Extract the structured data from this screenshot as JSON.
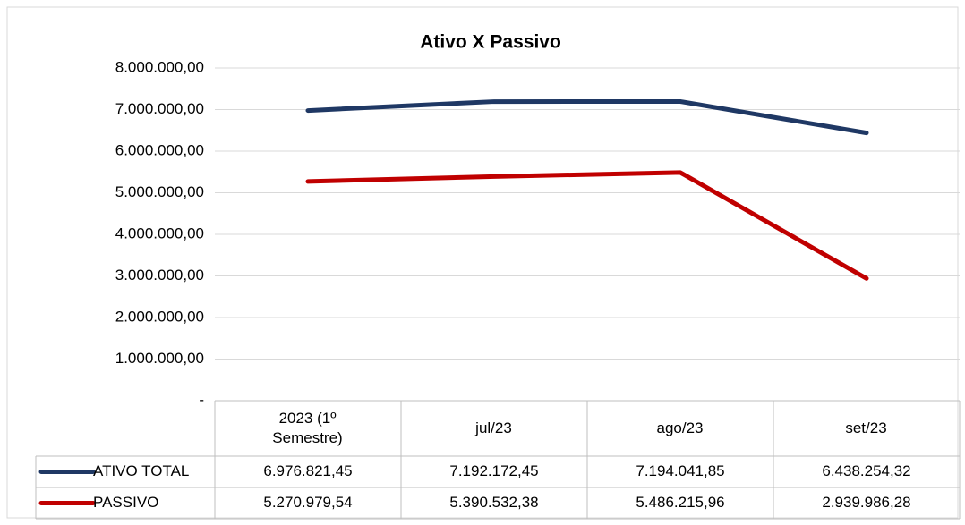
{
  "chart_data": {
    "type": "line",
    "title": "Ativo X Passivo",
    "categories": [
      "2023 (1º Semestre)",
      "jul/23",
      "ago/23",
      "set/23"
    ],
    "series": [
      {
        "name": "ATIVO TOTAL",
        "color": "#1f3864",
        "values": [
          6976821.45,
          7192172.45,
          7194041.85,
          6438254.32
        ],
        "value_labels": [
          "6.976.821,45",
          "7.192.172,45",
          "7.194.041,85",
          "6.438.254,32"
        ]
      },
      {
        "name": "PASSIVO",
        "color": "#c00000",
        "values": [
          5270979.54,
          5390532.38,
          5486215.96,
          2939986.28
        ],
        "value_labels": [
          "5.270.979,54",
          "5.390.532,38",
          "5.486.215,96",
          "2.939.986,28"
        ]
      }
    ],
    "ylim": [
      0,
      8000000
    ],
    "yticks": [
      {
        "value": 0,
        "label": "-"
      },
      {
        "value": 1000000,
        "label": "1.000.000,00"
      },
      {
        "value": 2000000,
        "label": "2.000.000,00"
      },
      {
        "value": 3000000,
        "label": "3.000.000,00"
      },
      {
        "value": 4000000,
        "label": "4.000.000,00"
      },
      {
        "value": 5000000,
        "label": "5.000.000,00"
      },
      {
        "value": 6000000,
        "label": "6.000.000,00"
      },
      {
        "value": 7000000,
        "label": "7.000.000,00"
      },
      {
        "value": 8000000,
        "label": "8.000.000,00"
      }
    ],
    "grid": true
  }
}
